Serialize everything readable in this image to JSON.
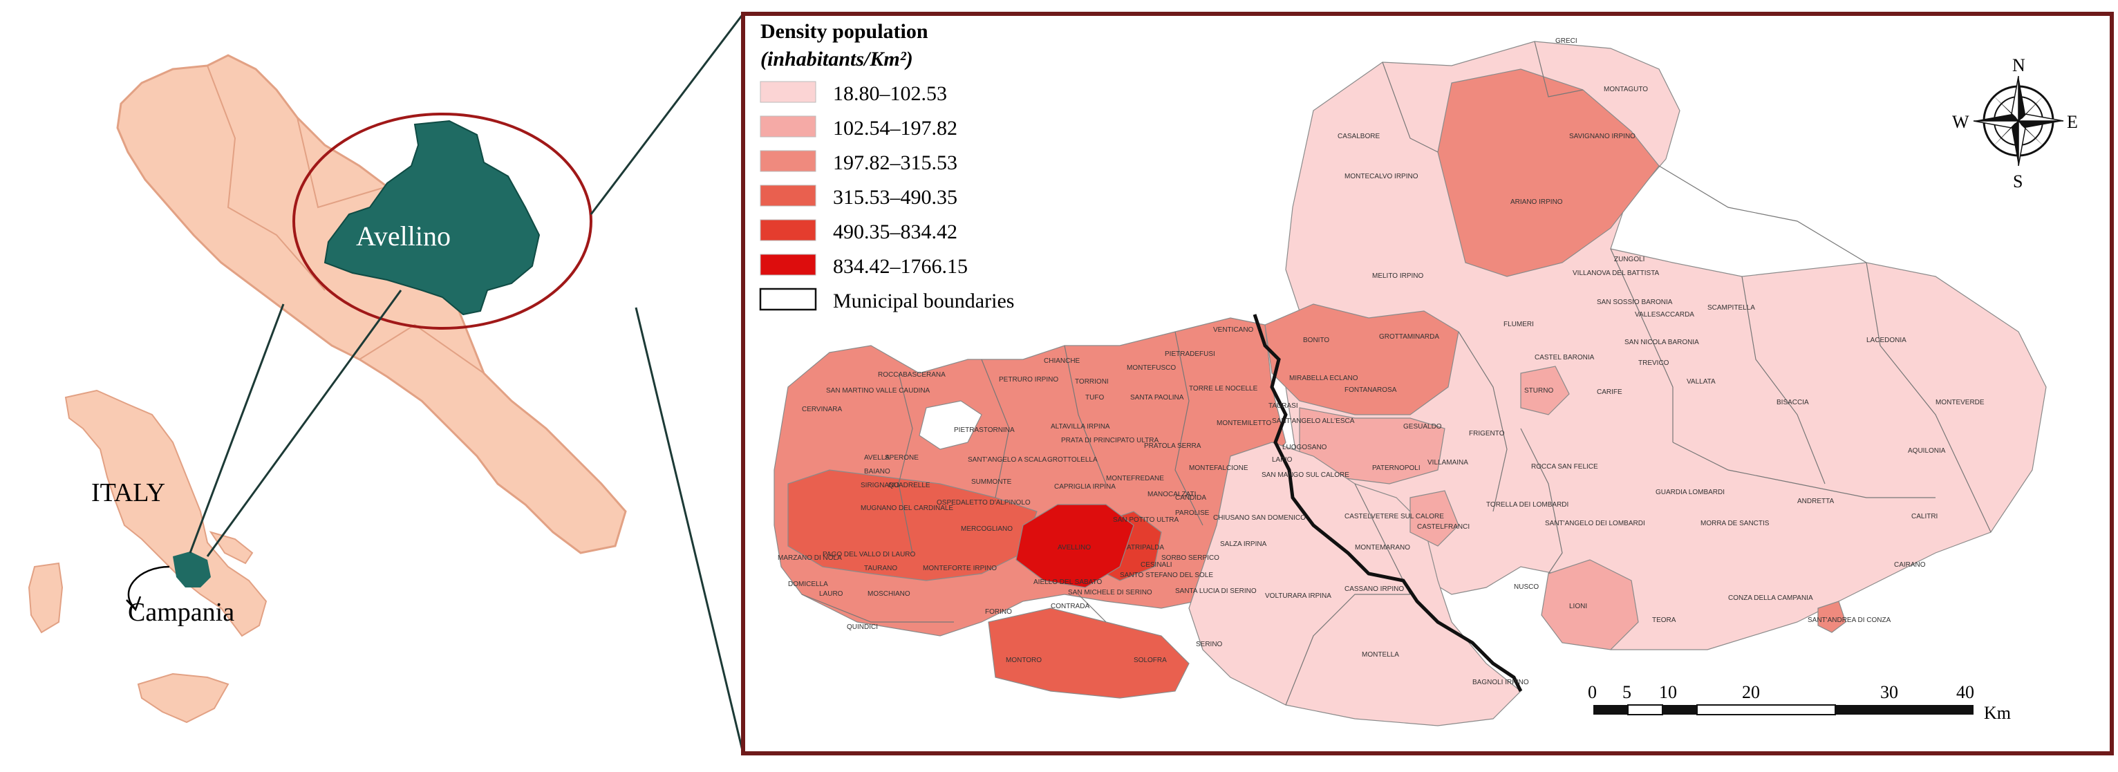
{
  "locator": {
    "country_label": "ITALY",
    "region_label": "Campania",
    "province_label": "Avellino",
    "colors": {
      "land": "#f9cbb3",
      "land_stroke": "#e2a184",
      "highlight": "#1f6b63",
      "ellipse": "#a01818",
      "connector": "#1c3a36"
    }
  },
  "legend": {
    "title": "Density population",
    "unit": "(inhabitants/Km²)",
    "classes": [
      {
        "label": "18.80–102.53",
        "color": "#fbd4d4"
      },
      {
        "label": "102.54–197.82",
        "color": "#f5aaa6"
      },
      {
        "label": "197.82–315.53",
        "color": "#ef8a7e"
      },
      {
        "label": "315.53–490.35",
        "color": "#e9604f"
      },
      {
        "label": "490.35–834.42",
        "color": "#e43d2e"
      },
      {
        "label": "834.42–1766.15",
        "color": "#dd0d0d"
      }
    ],
    "boundaries_label": "Municipal boundaries"
  },
  "compass": {
    "n": "N",
    "s": "S",
    "e": "E",
    "w": "W"
  },
  "scale_bar": {
    "ticks": [
      "0",
      "5",
      "10",
      "20",
      "30",
      "40"
    ],
    "unit": "Km"
  },
  "frame_color": "#6e1a1a",
  "municipalities": [
    {
      "name": "GRECI",
      "class": 0
    },
    {
      "name": "MONTAGUTO",
      "class": 0
    },
    {
      "name": "CASALBORE",
      "class": 0
    },
    {
      "name": "SAVIGNANO IRPINO",
      "class": 0
    },
    {
      "name": "MONTECALVO IRPINO",
      "class": 0
    },
    {
      "name": "ARIANO IRPINO",
      "class": 2
    },
    {
      "name": "ZUNGOLI",
      "class": 0
    },
    {
      "name": "VILLANOVA DEL BATTISTA",
      "class": 0
    },
    {
      "name": "MELITO IRPINO",
      "class": 0
    },
    {
      "name": "BONITO",
      "class": 1
    },
    {
      "name": "GROTTAMINARDA",
      "class": 2
    },
    {
      "name": "FLUMERI",
      "class": 0
    },
    {
      "name": "SAN SOSSIO BARONIA",
      "class": 0
    },
    {
      "name": "VALLESACCARDA",
      "class": 0
    },
    {
      "name": "SCAMPITELLA",
      "class": 0
    },
    {
      "name": "SAN NICOLA BARONIA",
      "class": 1
    },
    {
      "name": "TREVICO",
      "class": 0
    },
    {
      "name": "CASTEL BARONIA",
      "class": 0
    },
    {
      "name": "CARIFE",
      "class": 0
    },
    {
      "name": "VALLATA",
      "class": 0
    },
    {
      "name": "LACEDONIA",
      "class": 0
    },
    {
      "name": "BISACCIA",
      "class": 0
    },
    {
      "name": "MONTEVERDE",
      "class": 0
    },
    {
      "name": "AQUILONIA",
      "class": 0
    },
    {
      "name": "MIRABELLA ECLANO",
      "class": 2
    },
    {
      "name": "VENTICANO",
      "class": 2
    },
    {
      "name": "PIETRADEFUSI",
      "class": 1
    },
    {
      "name": "MONTEFUSCO",
      "class": 1
    },
    {
      "name": "TORRE LE NOCELLE",
      "class": 1
    },
    {
      "name": "SANTA PAOLINA",
      "class": 1
    },
    {
      "name": "TUFO",
      "class": 1
    },
    {
      "name": "CHIANCHE",
      "class": 0
    },
    {
      "name": "PETRURO IRPINO",
      "class": 0
    },
    {
      "name": "TORRIONI",
      "class": 0
    },
    {
      "name": "ROCCABASCERANA",
      "class": 2
    },
    {
      "name": "SAN MARTINO VALLE CAUDINA",
      "class": 2
    },
    {
      "name": "CERVINARA",
      "class": 2
    },
    {
      "name": "PIETRASTORNINA",
      "class": 1
    },
    {
      "name": "ALTAVILLA IRPINA",
      "class": 2
    },
    {
      "name": "PRATA DI PRINCIPATO ULTRA",
      "class": 2
    },
    {
      "name": "PRATOLA SERRA",
      "class": 2
    },
    {
      "name": "MONTEMILETTO",
      "class": 2
    },
    {
      "name": "TAURASI",
      "class": 1
    },
    {
      "name": "SANT'ANGELO ALL'ESCA",
      "class": 1
    },
    {
      "name": "FONTANAROSA",
      "class": 2
    },
    {
      "name": "GESUALDO",
      "class": 1
    },
    {
      "name": "STURNO",
      "class": 1
    },
    {
      "name": "FRIGENTO",
      "class": 0
    },
    {
      "name": "LAPIO",
      "class": 0
    },
    {
      "name": "LUOGOSANO",
      "class": 0
    },
    {
      "name": "PATERNOPOLI",
      "class": 1
    },
    {
      "name": "VILLAMAINA",
      "class": 1
    },
    {
      "name": "ROCCA SAN FELICE",
      "class": 0
    },
    {
      "name": "GUARDIA LOMBARDI",
      "class": 0
    },
    {
      "name": "ANDRETTA",
      "class": 0
    },
    {
      "name": "CALITRI",
      "class": 0
    },
    {
      "name": "CAIRANO",
      "class": 0
    },
    {
      "name": "CONZA DELLA CAMPANIA",
      "class": 0
    },
    {
      "name": "SANT'ANDREA DI CONZA",
      "class": 2
    },
    {
      "name": "TEORA",
      "class": 0
    },
    {
      "name": "LIONI",
      "class": 1
    },
    {
      "name": "MORRA DE SANCTIS",
      "class": 0
    },
    {
      "name": "SANT'ANGELO DEI LOMBARDI",
      "class": 0
    },
    {
      "name": "TORELLA DEI LOMBARDI",
      "class": 0
    },
    {
      "name": "CASTELFRANCI",
      "class": 1
    },
    {
      "name": "NUSCO",
      "class": 0
    },
    {
      "name": "CASTELVETERE SUL CALORE",
      "class": 0
    },
    {
      "name": "MONTEMARANO",
      "class": 0
    },
    {
      "name": "CASSANO IRPINO",
      "class": 0
    },
    {
      "name": "MONTELLA",
      "class": 0
    },
    {
      "name": "BAGNOLI IRPINO",
      "class": 0
    },
    {
      "name": "VOLTURARA IRPINA",
      "class": 0
    },
    {
      "name": "SAN MANGO SUL CALORE",
      "class": 0
    },
    {
      "name": "CHIUSANO SAN DOMENICO",
      "class": 0
    },
    {
      "name": "SALZA IRPINA",
      "class": 1
    },
    {
      "name": "SORBO SERPICO",
      "class": 1
    },
    {
      "name": "SANTA LUCIA DI SERINO",
      "class": 1
    },
    {
      "name": "SERINO",
      "class": 1
    },
    {
      "name": "SANTO STEFANO DEL SOLE",
      "class": 2
    },
    {
      "name": "SAN MICHELE DI SERINO",
      "class": 3
    },
    {
      "name": "CESINALI",
      "class": 3
    },
    {
      "name": "AIELLO DEL SABATO",
      "class": 3
    },
    {
      "name": "ATRIPALDA",
      "class": 4
    },
    {
      "name": "AVELLINO",
      "class": 5
    },
    {
      "name": "SAN POTITO ULTRA",
      "class": 3
    },
    {
      "name": "PAROLISE",
      "class": 2
    },
    {
      "name": "CANDIDA",
      "class": 2
    },
    {
      "name": "MANOCALZATI",
      "class": 3
    },
    {
      "name": "MONTEFALCIONE",
      "class": 2
    },
    {
      "name": "MONTEFREDANE",
      "class": 2
    },
    {
      "name": "GROTTOLELLA",
      "class": 2
    },
    {
      "name": "CAPRIGLIA IRPINA",
      "class": 2
    },
    {
      "name": "SUMMONTE",
      "class": 1
    },
    {
      "name": "SANT'ANGELO A SCALA",
      "class": 1
    },
    {
      "name": "OSPEDALETTO D'ALPINOLO",
      "class": 2
    },
    {
      "name": "MERCOGLIANO",
      "class": 3
    },
    {
      "name": "MONTEFORTE IRPINO",
      "class": 3
    },
    {
      "name": "AVELLA",
      "class": 2
    },
    {
      "name": "BAIANO",
      "class": 3
    },
    {
      "name": "SPERONE",
      "class": 3
    },
    {
      "name": "SIRIGNANO",
      "class": 3
    },
    {
      "name": "QUADRELLE",
      "class": 3
    },
    {
      "name": "MUGNANO DEL CARDINALE",
      "class": 3
    },
    {
      "name": "PAGO DEL VALLO DI LAURO",
      "class": 3
    },
    {
      "name": "MARZANO DI NOLA",
      "class": 2
    },
    {
      "name": "TAURANO",
      "class": 2
    },
    {
      "name": "DOMICELLA",
      "class": 2
    },
    {
      "name": "LAURO",
      "class": 2
    },
    {
      "name": "MOSCHIANO",
      "class": 1
    },
    {
      "name": "QUINDICI",
      "class": 1
    },
    {
      "name": "FORINO",
      "class": 2
    },
    {
      "name": "CONTRADA",
      "class": 2
    },
    {
      "name": "MONTORO",
      "class": 3
    },
    {
      "name": "SOLOFRA",
      "class": 3
    }
  ]
}
